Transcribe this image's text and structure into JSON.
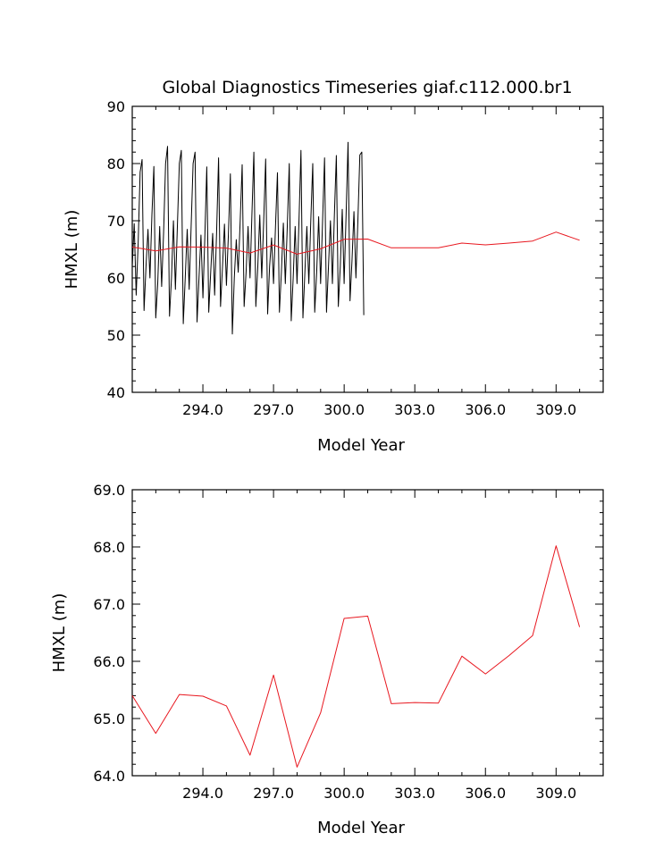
{
  "chart_data": [
    {
      "type": "line",
      "title": "Global Diagnostics Timeseries giaf.c112.000.br1",
      "xlabel": "Model Year",
      "ylabel": "HMXL (m)",
      "xlim": [
        291.0,
        311.0
      ],
      "ylim": [
        40,
        90
      ],
      "x_tick_labels": [
        "294.0",
        "297.0",
        "300.0",
        "303.0",
        "306.0",
        "309.0"
      ],
      "y_tick_labels": [
        "40",
        "50",
        "60",
        "70",
        "80",
        "90"
      ],
      "series": [
        {
          "color": "#000000",
          "monthly_start_year": 291.0,
          "values": [
            62,
            69.5,
            57,
            66,
            78.5,
            80.7,
            54.3,
            62,
            68.5,
            60,
            71,
            79.5,
            53,
            59,
            69,
            58.5,
            68,
            80,
            83,
            53.3,
            60,
            70,
            58,
            69,
            80,
            82.3,
            52,
            60,
            68.5,
            58,
            69,
            80,
            82,
            52.3,
            60,
            67.5,
            56.5,
            67,
            79.4,
            54,
            61,
            67.8,
            57,
            68,
            81,
            55,
            62,
            69.4,
            58.7,
            67.6,
            78.2,
            50.2,
            60,
            66.7,
            61,
            70,
            79.8,
            55,
            61,
            69,
            60,
            71,
            82,
            55,
            62,
            71,
            60,
            70,
            80.8,
            53.7,
            62,
            67,
            59,
            69,
            78.4,
            54,
            61,
            69.6,
            59,
            69,
            80,
            52.5,
            60,
            69,
            59,
            70,
            82.3,
            53,
            61,
            69,
            59,
            70,
            80,
            54,
            61,
            70.7,
            59,
            70,
            81,
            54,
            62,
            70,
            59,
            71,
            81.4,
            55,
            62,
            72,
            59,
            71,
            83.7,
            56,
            63,
            71.6,
            60,
            70,
            81.5,
            82,
            53.5
          ]
        },
        {
          "color": "#e8171f",
          "x": [
            291.0,
            292.0,
            293.0,
            294.0,
            295.0,
            296.0,
            297.0,
            298.0,
            299.0,
            300.0,
            301.0,
            302.0,
            303.0,
            304.0,
            305.0,
            306.0,
            307.0,
            308.0,
            309.0,
            310.0
          ],
          "values": [
            65.4,
            64.74,
            65.42,
            65.39,
            65.22,
            64.36,
            65.76,
            64.15,
            65.1,
            66.75,
            66.79,
            65.26,
            65.28,
            65.27,
            66.09,
            65.78,
            66.1,
            66.45,
            68.02,
            66.6
          ]
        }
      ]
    },
    {
      "type": "line",
      "title": "",
      "xlabel": "Model Year",
      "ylabel": "HMXL (m)",
      "xlim": [
        291.0,
        311.0
      ],
      "ylim": [
        64.0,
        69.0
      ],
      "x_tick_labels": [
        "294.0",
        "297.0",
        "300.0",
        "303.0",
        "306.0",
        "309.0"
      ],
      "y_tick_labels": [
        "64.0",
        "65.0",
        "66.0",
        "67.0",
        "68.0",
        "69.0"
      ],
      "series": [
        {
          "color": "#e8171f",
          "x": [
            291.0,
            292.0,
            293.0,
            294.0,
            295.0,
            296.0,
            297.0,
            298.0,
            299.0,
            300.0,
            301.0,
            302.0,
            303.0,
            304.0,
            305.0,
            306.0,
            307.0,
            308.0,
            309.0,
            310.0
          ],
          "values": [
            65.4,
            64.74,
            65.42,
            65.39,
            65.22,
            64.36,
            65.76,
            64.15,
            65.1,
            66.75,
            66.79,
            65.26,
            65.28,
            65.27,
            66.09,
            65.78,
            66.1,
            66.45,
            68.02,
            66.6
          ]
        }
      ]
    }
  ]
}
